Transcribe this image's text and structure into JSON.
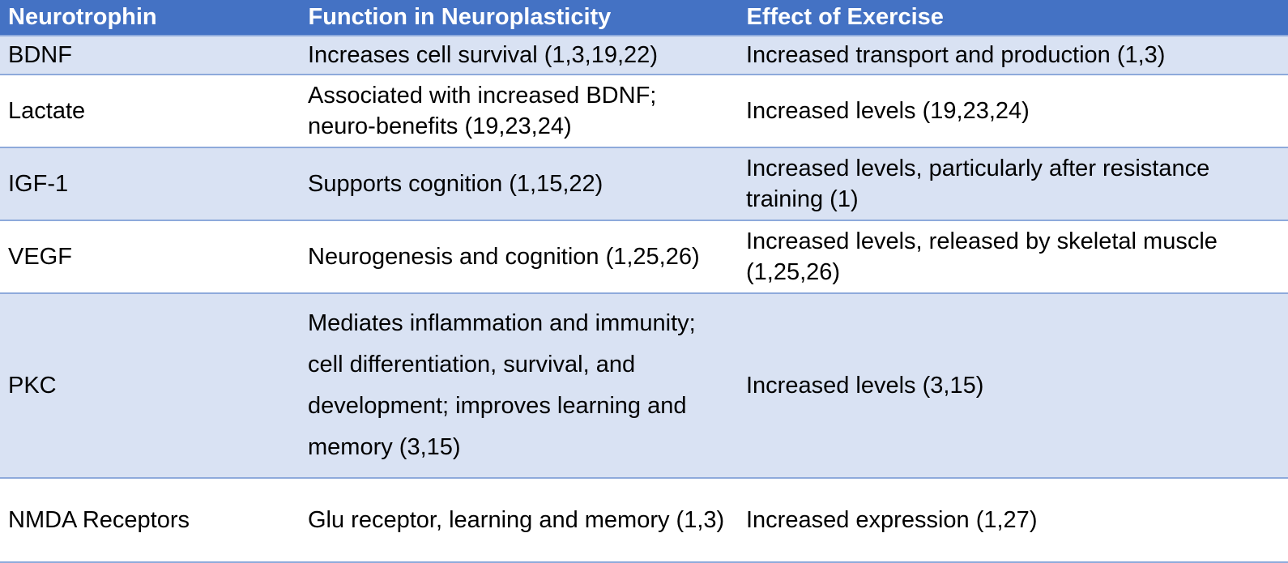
{
  "table": {
    "headers": [
      "Neurotrophin",
      "Function in Neuroplasticity",
      "Effect of Exercise"
    ],
    "rows": [
      [
        "BDNF",
        "Increases cell survival (1,3,19,22)",
        "Increased transport and production (1,3)"
      ],
      [
        "Lactate",
        "Associated with increased BDNF; neuro-benefits (19,23,24)",
        "Increased levels (19,23,24)"
      ],
      [
        "IGF-1",
        "Supports cognition (1,15,22)",
        "Increased levels, particularly after resistance training (1)"
      ],
      [
        "VEGF",
        "Neurogenesis and cognition (1,25,26)",
        "Increased levels, released by skeletal muscle (1,25,26)"
      ],
      [
        "PKC",
        "Mediates inflammation and immunity; cell differentiation, survival, and development; improves learning and memory (3,15)",
        "Increased levels (3,15)"
      ],
      [
        "NMDA Receptors",
        "Glu receptor, learning and memory (1,3)",
        "Increased expression (1,27)"
      ]
    ]
  }
}
